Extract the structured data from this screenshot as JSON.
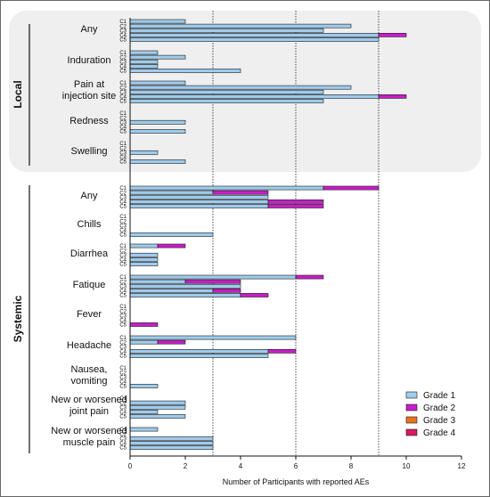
{
  "chart_data": {
    "type": "bar",
    "orientation": "horizontal",
    "stacked": true,
    "xlabel": "Number of Participants with reported AEs",
    "xlim": [
      0,
      12
    ],
    "xticks": [
      0,
      2,
      4,
      6,
      8,
      10,
      12
    ],
    "reference_lines": [
      3,
      6,
      9
    ],
    "grades": [
      "Grade 1",
      "Grade 2",
      "Grade 3",
      "Grade 4"
    ],
    "colors": {
      "Grade 1": "#9fcbec",
      "Grade 2": "#c81ec8",
      "Grade 3": "#e8731e",
      "Grade 4": "#d81b60",
      "local_bg": "#efefef"
    },
    "cycles": [
      "C1",
      "C2",
      "C3",
      "C4",
      "C5"
    ],
    "sections": [
      {
        "name": "Local",
        "shaded": true,
        "groups": [
          {
            "label": [
              "Any"
            ],
            "rows": [
              [
                2,
                0,
                0,
                0
              ],
              [
                8,
                0,
                0,
                0
              ],
              [
                7,
                0,
                0,
                0
              ],
              [
                9,
                1,
                0,
                0
              ],
              [
                9,
                0,
                0,
                0
              ]
            ]
          },
          {
            "label": [
              "Induration"
            ],
            "rows": [
              [
                1,
                0,
                0,
                0
              ],
              [
                2,
                0,
                0,
                0
              ],
              [
                1,
                0,
                0,
                0
              ],
              [
                1,
                0,
                0,
                0
              ],
              [
                4,
                0,
                0,
                0
              ]
            ]
          },
          {
            "label": [
              "Pain at",
              "injection site"
            ],
            "rows": [
              [
                2,
                0,
                0,
                0
              ],
              [
                8,
                0,
                0,
                0
              ],
              [
                7,
                0,
                0,
                0
              ],
              [
                9,
                1,
                0,
                0
              ],
              [
                7,
                0,
                0,
                0
              ]
            ]
          },
          {
            "label": [
              "Redness"
            ],
            "rows": [
              [
                0,
                0,
                0,
                0
              ],
              [
                0,
                0,
                0,
                0
              ],
              [
                2,
                0,
                0,
                0
              ],
              [
                0,
                0,
                0,
                0
              ],
              [
                2,
                0,
                0,
                0
              ]
            ]
          },
          {
            "label": [
              "Swelling"
            ],
            "rows": [
              [
                0,
                0,
                0,
                0
              ],
              [
                0,
                0,
                0,
                0
              ],
              [
                1,
                0,
                0,
                0
              ],
              [
                0,
                0,
                0,
                0
              ],
              [
                2,
                0,
                0,
                0
              ]
            ]
          }
        ]
      },
      {
        "name": "Systemic",
        "shaded": false,
        "groups": [
          {
            "label": [
              "Any"
            ],
            "rows": [
              [
                7,
                2,
                0,
                0
              ],
              [
                3,
                2,
                0,
                0
              ],
              [
                5,
                0,
                0,
                0
              ],
              [
                5,
                2,
                0,
                0
              ],
              [
                5,
                2,
                0,
                0
              ]
            ]
          },
          {
            "label": [
              "Chills"
            ],
            "rows": [
              [
                0,
                0,
                0,
                0
              ],
              [
                0,
                0,
                0,
                0
              ],
              [
                0,
                0,
                0,
                0
              ],
              [
                0,
                0,
                0,
                0
              ],
              [
                3,
                0,
                0,
                0
              ]
            ]
          },
          {
            "label": [
              "Diarrhea"
            ],
            "rows": [
              [
                1,
                1,
                0,
                0
              ],
              [
                0,
                0,
                0,
                0
              ],
              [
                1,
                0,
                0,
                0
              ],
              [
                1,
                0,
                0,
                0
              ],
              [
                1,
                0,
                0,
                0
              ]
            ]
          },
          {
            "label": [
              "Fatique"
            ],
            "rows": [
              [
                6,
                1,
                0,
                0
              ],
              [
                2,
                2,
                0,
                0
              ],
              [
                4,
                0,
                0,
                0
              ],
              [
                3,
                1,
                0,
                0
              ],
              [
                4,
                1,
                0,
                0
              ]
            ]
          },
          {
            "label": [
              "Fever"
            ],
            "rows": [
              [
                0,
                0,
                0,
                0
              ],
              [
                0,
                0,
                0,
                0
              ],
              [
                0,
                0,
                0,
                0
              ],
              [
                0,
                0,
                0,
                0
              ],
              [
                0,
                1,
                0,
                0
              ]
            ]
          },
          {
            "label": [
              "Headache"
            ],
            "rows": [
              [
                6,
                0,
                0,
                0
              ],
              [
                1,
                1,
                0,
                0
              ],
              [
                0,
                0,
                0,
                0
              ],
              [
                5,
                1,
                0,
                0
              ],
              [
                5,
                0,
                0,
                0
              ]
            ]
          },
          {
            "label": [
              "Nausea,",
              "vomiting"
            ],
            "rows": [
              [
                0,
                0,
                0,
                0
              ],
              [
                0,
                0,
                0,
                0
              ],
              [
                0,
                0,
                0,
                0
              ],
              [
                0,
                0,
                0,
                0
              ],
              [
                1,
                0,
                0,
                0
              ]
            ]
          },
          {
            "label": [
              "New or worsened",
              "joint pain"
            ],
            "rows": [
              [
                0,
                0,
                0,
                0
              ],
              [
                2,
                0,
                0,
                0
              ],
              [
                2,
                0,
                0,
                0
              ],
              [
                1,
                0,
                0,
                0
              ],
              [
                2,
                0,
                0,
                0
              ]
            ]
          },
          {
            "label": [
              "New or worsened",
              "muscle pain"
            ],
            "rows": [
              [
                1,
                0,
                0,
                0
              ],
              [
                0,
                0,
                0,
                0
              ],
              [
                3,
                0,
                0,
                0
              ],
              [
                3,
                0,
                0,
                0
              ],
              [
                3,
                0,
                0,
                0
              ]
            ]
          }
        ]
      }
    ]
  }
}
